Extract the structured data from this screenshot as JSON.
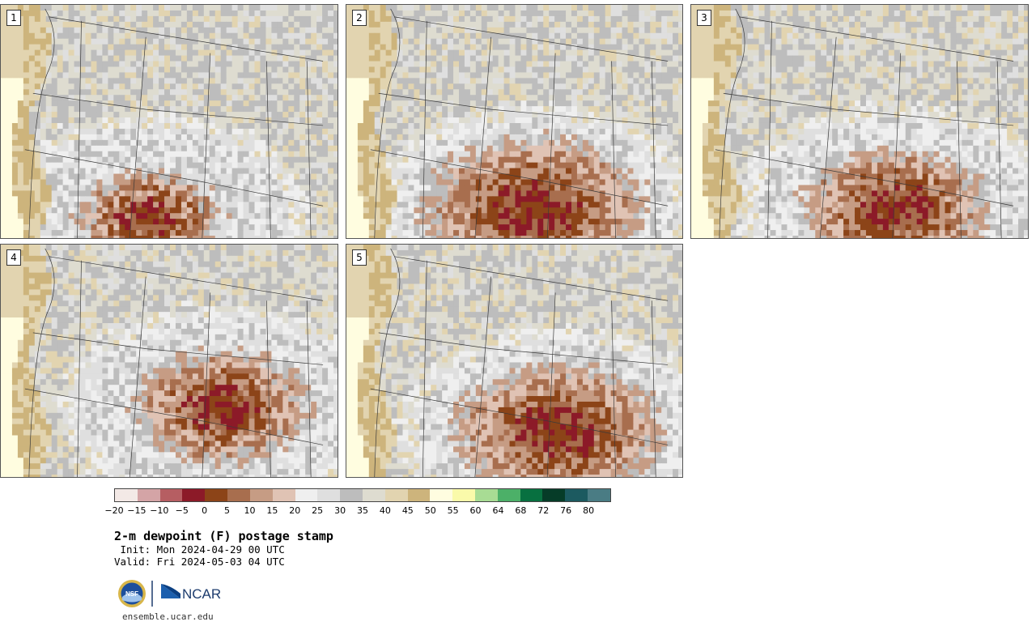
{
  "panels": [
    {
      "label": "1",
      "variant": 0
    },
    {
      "label": "2",
      "variant": 1
    },
    {
      "label": "3",
      "variant": 2
    },
    {
      "label": "4",
      "variant": 3
    },
    {
      "label": "5",
      "variant": 4
    }
  ],
  "colorbar": {
    "colors": [
      "#f3e9e6",
      "#d4a4a6",
      "#b65e62",
      "#8c1a28",
      "#8c4418",
      "#a86e4e",
      "#c69c84",
      "#e0c3b4",
      "#efefef",
      "#dfdfdf",
      "#bdbdbd",
      "#dedcd0",
      "#e2d4b0",
      "#cdb47c",
      "#fffde0",
      "#fafaaa",
      "#a8dc94",
      "#4cb068",
      "#087040",
      "#063c28",
      "#1c5a60",
      "#4a7c84"
    ],
    "ticks": [
      "−20",
      "−15",
      "−10",
      "−5",
      "0",
      "5",
      "10",
      "15",
      "20",
      "25",
      "30",
      "35",
      "40",
      "45",
      "50",
      "55",
      "60",
      "64",
      "68",
      "72",
      "76",
      "80"
    ]
  },
  "title": "2-m dewpoint (F) postage stamp",
  "init": " Init: Mon 2024-04-29 00 UTC",
  "valid": "Valid: Fri 2024-05-03 04 UTC",
  "logos": {
    "nsf": "NSF",
    "ncar": "NCAR"
  },
  "url": "ensemble.ucar.edu"
}
